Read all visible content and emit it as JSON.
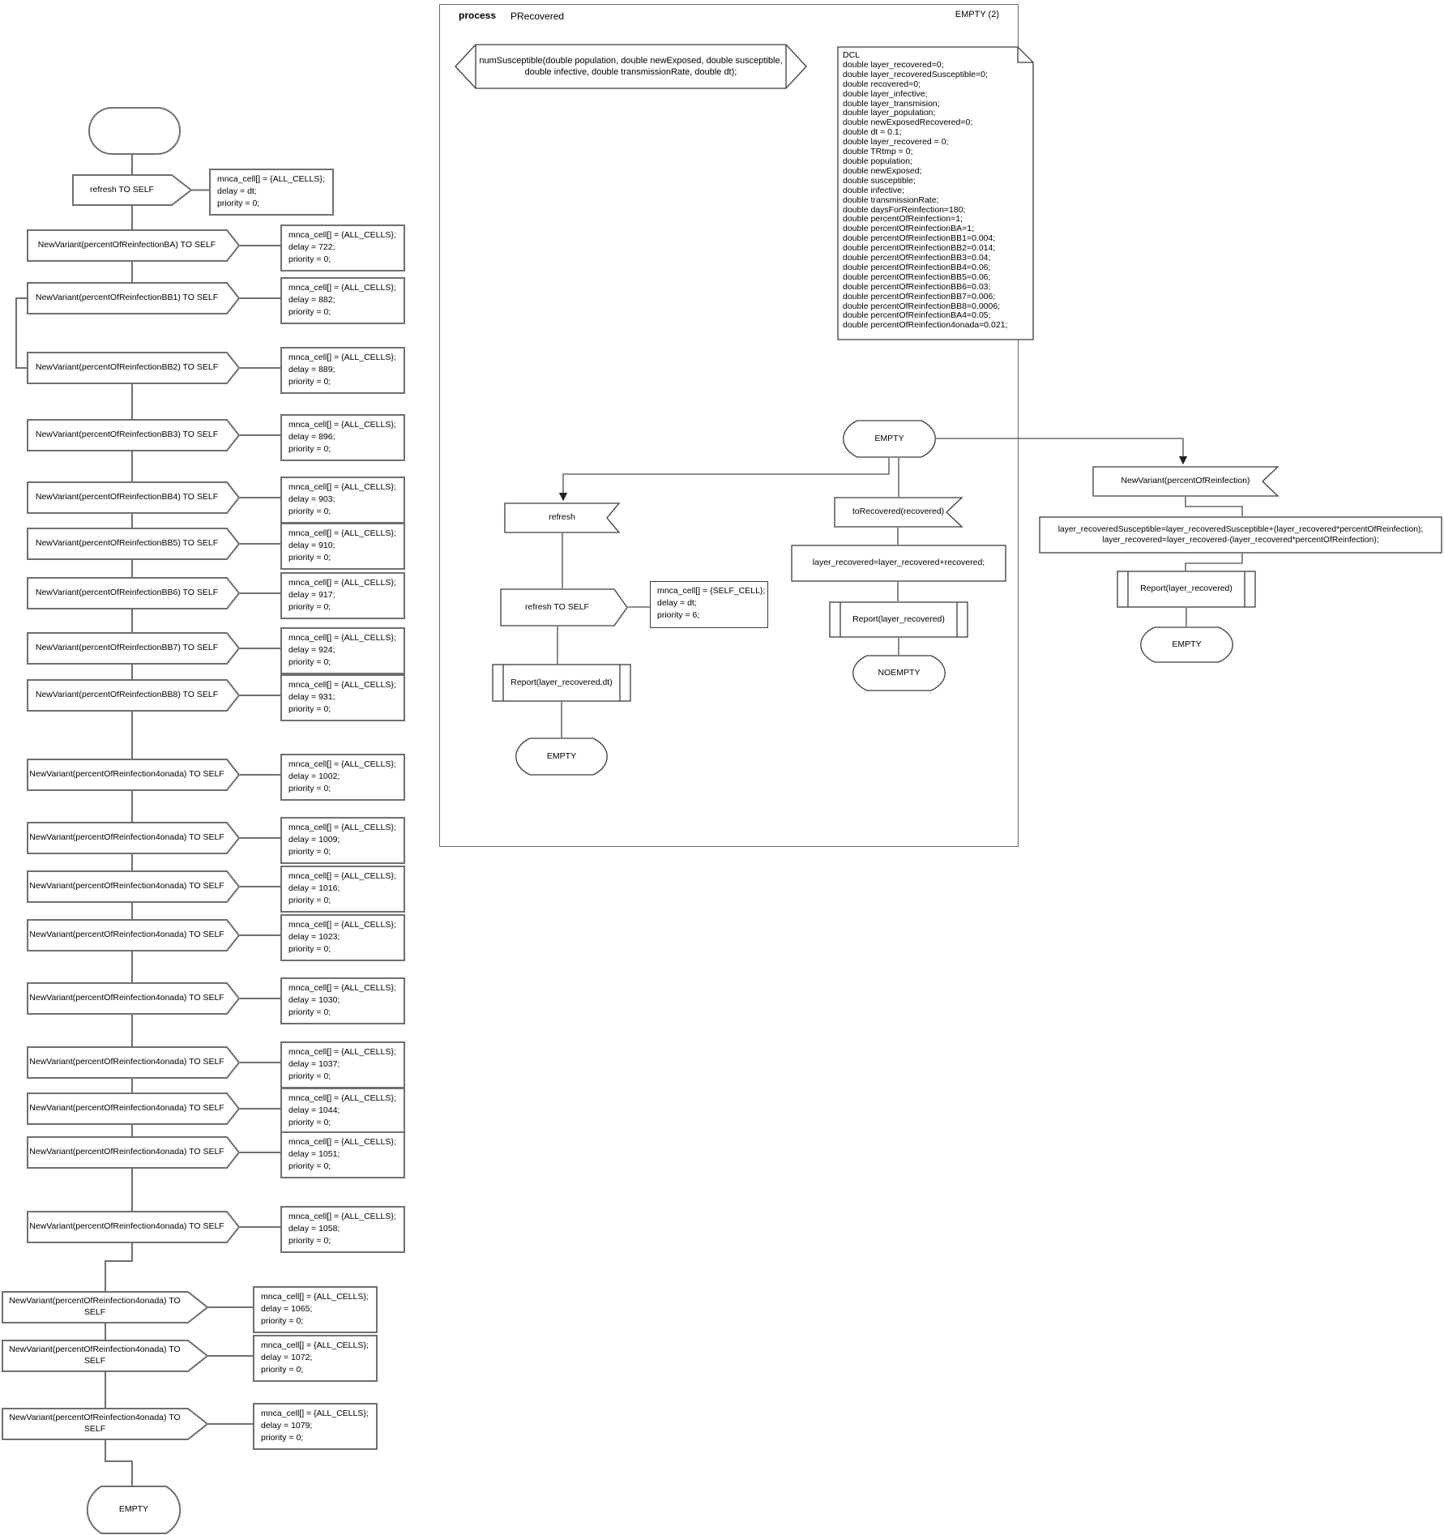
{
  "diagram": {
    "frame": {
      "process_label": "process",
      "process_name": "PRecovered",
      "page_label": "EMPTY (2)"
    },
    "signature_text": "numSusceptible(double population, double newExposed, double susceptible,\ndouble infective, double transmissionRate, double dt);",
    "dcl_lines": [
      "DCL",
      "double layer_recovered=0;",
      "double layer_recoveredSusceptible=0;",
      "double recovered=0;",
      "double layer_infective;",
      "double layer_transmision;",
      "double layer_population;",
      "double newExposedRecovered=0;",
      "double dt = 0.1;",
      "double layer_recovered = 0;",
      "double TRtmp = 0;",
      "double population;",
      "double newExposed;",
      "double susceptible;",
      "double infective;",
      "double transmissionRate;",
      "double daysForReinfection=180;",
      "double percentOfReinfection=1;",
      "double percentOfReinfectionBA=1;",
      "double percentOfReinfectionBB1=0.004;",
      "double percentOfReinfectionBB2=0.014;",
      "double percentOfReinfectionBB3=0.04;",
      "double percentOfReinfectionBB4=0.06;",
      "double percentOfReinfectionBB5=0.06;",
      "double percentOfReinfectionBB6=0.03;",
      "double percentOfReinfectionBB7=0.006;",
      "double percentOfReinfectionBB8=0.0006;",
      "double percentOfReinfectionBA4=0.05;",
      "double percentOfReinfection4onada=0.021;"
    ],
    "left_chain": {
      "end_state": "EMPTY",
      "items": [
        {
          "label": "refresh TO SELF",
          "comment": [
            "mnca_cell[] = {ALL_CELLS};",
            "delay = dt;",
            "priority = 0;"
          ]
        },
        {
          "label": "NewVariant(percentOfReinfectionBA) TO SELF",
          "comment": [
            "mnca_cell[] = {ALL_CELLS};",
            "delay = 722;",
            "priority = 0;"
          ]
        },
        {
          "label": "NewVariant(percentOfReinfectionBB1) TO SELF",
          "comment": [
            "mnca_cell[] = {ALL_CELLS};",
            "delay = 882;",
            "priority = 0;"
          ]
        },
        {
          "label": "NewVariant(percentOfReinfectionBB2) TO SELF",
          "comment": [
            "mnca_cell[] = {ALL_CELLS};",
            "delay = 889;",
            "priority = 0;"
          ]
        },
        {
          "label": "NewVariant(percentOfReinfectionBB3) TO SELF",
          "comment": [
            "mnca_cell[] = {ALL_CELLS};",
            "delay = 896;",
            "priority = 0;"
          ]
        },
        {
          "label": "NewVariant(percentOfReinfectionBB4) TO SELF",
          "comment": [
            "mnca_cell[] = {ALL_CELLS};",
            "delay = 903;",
            "priority = 0;"
          ]
        },
        {
          "label": "NewVariant(percentOfReinfectionBB5) TO SELF",
          "comment": [
            "mnca_cell[] = {ALL_CELLS};",
            "delay = 910;",
            "priority = 0;"
          ]
        },
        {
          "label": "NewVariant(percentOfReinfectionBB6) TO SELF",
          "comment": [
            "mnca_cell[] = {ALL_CELLS};",
            "delay = 917;",
            "priority = 0;"
          ]
        },
        {
          "label": "NewVariant(percentOfReinfectionBB7) TO SELF",
          "comment": [
            "mnca_cell[] = {ALL_CELLS};",
            "delay = 924;",
            "priority = 0;"
          ]
        },
        {
          "label": "NewVariant(percentOfReinfectionBB8) TO SELF",
          "comment": [
            "mnca_cell[] = {ALL_CELLS};",
            "delay = 931;",
            "priority = 0;"
          ]
        },
        {
          "label": "NewVariant(percentOfReinfection4onada) TO SELF",
          "comment": [
            "mnca_cell[] = {ALL_CELLS};",
            "delay = 1002;",
            "priority = 0;"
          ]
        },
        {
          "label": "NewVariant(percentOfReinfection4onada) TO SELF",
          "comment": [
            "mnca_cell[] = {ALL_CELLS};",
            "delay = 1009;",
            "priority = 0;"
          ]
        },
        {
          "label": "NewVariant(percentOfReinfection4onada) TO SELF",
          "comment": [
            "mnca_cell[] = {ALL_CELLS};",
            "delay = 1016;",
            "priority = 0;"
          ]
        },
        {
          "label": "NewVariant(percentOfReinfection4onada) TO SELF",
          "comment": [
            "mnca_cell[] = {ALL_CELLS};",
            "delay = 1023;",
            "priority = 0;"
          ]
        },
        {
          "label": "NewVariant(percentOfReinfection4onada) TO SELF",
          "comment": [
            "mnca_cell[] = {ALL_CELLS};",
            "delay = 1030;",
            "priority = 0;"
          ]
        },
        {
          "label": "NewVariant(percentOfReinfection4onada) TO SELF",
          "comment": [
            "mnca_cell[] = {ALL_CELLS};",
            "delay = 1037;",
            "priority = 0;"
          ]
        },
        {
          "label": "NewVariant(percentOfReinfection4onada) TO SELF",
          "comment": [
            "mnca_cell[] = {ALL_CELLS};",
            "delay = 1044;",
            "priority = 0;"
          ]
        },
        {
          "label": "NewVariant(percentOfReinfection4onada) TO SELF",
          "comment": [
            "mnca_cell[] = {ALL_CELLS};",
            "delay = 1051;",
            "priority = 0;"
          ]
        },
        {
          "label": "NewVariant(percentOfReinfection4onada) TO SELF",
          "comment": [
            "mnca_cell[] = {ALL_CELLS};",
            "delay = 1058;",
            "priority = 0;"
          ]
        },
        {
          "label": "NewVariant(percentOfReinfection4onada) TO SELF",
          "comment": [
            "mnca_cell[] = {ALL_CELLS};",
            "delay = 1065;",
            "priority = 0;"
          ]
        },
        {
          "label": "NewVariant(percentOfReinfection4onada) TO SELF",
          "comment": [
            "mnca_cell[] = {ALL_CELLS};",
            "delay = 1072;",
            "priority = 0;"
          ]
        },
        {
          "label": "NewVariant(percentOfReinfection4onada) TO SELF",
          "comment": [
            "mnca_cell[] = {ALL_CELLS};",
            "delay = 1079;",
            "priority = 0;"
          ]
        }
      ]
    },
    "states": {
      "main": "EMPTY",
      "noempty": "NOEMPTY",
      "left_end": "EMPTY",
      "right_end": "EMPTY"
    },
    "inputs": {
      "refresh": "refresh",
      "to_recovered": "toRecovered(recovered)",
      "new_variant": "NewVariant(percentOfReinfection)"
    },
    "outputs": {
      "refresh_to_self": "refresh TO SELF"
    },
    "tasks": {
      "add_recovered": "layer_recovered=layer_recovered+recovered;",
      "reinfection": "layer_recoveredSusceptible=layer_recoveredSusceptible+(layer_recovered*percentOfReinfection);\nlayer_recovered=layer_recovered-(layer_recovered*percentOfReinfection);"
    },
    "procedures": {
      "report_dt": "Report(layer_recovered,dt)",
      "report_mid": "Report(layer_recovered)",
      "report_right": "Report(layer_recovered)"
    },
    "comments": {
      "refresh_self": "mnca_cell[] = {SELF_CELL};\ndelay = dt;\npriority = 6;"
    },
    "colors": {
      "chain_stroke": "#6f6f6f",
      "detail_stroke": "#3c3c3c",
      "background": "#ffffff",
      "text": "#000000"
    }
  }
}
